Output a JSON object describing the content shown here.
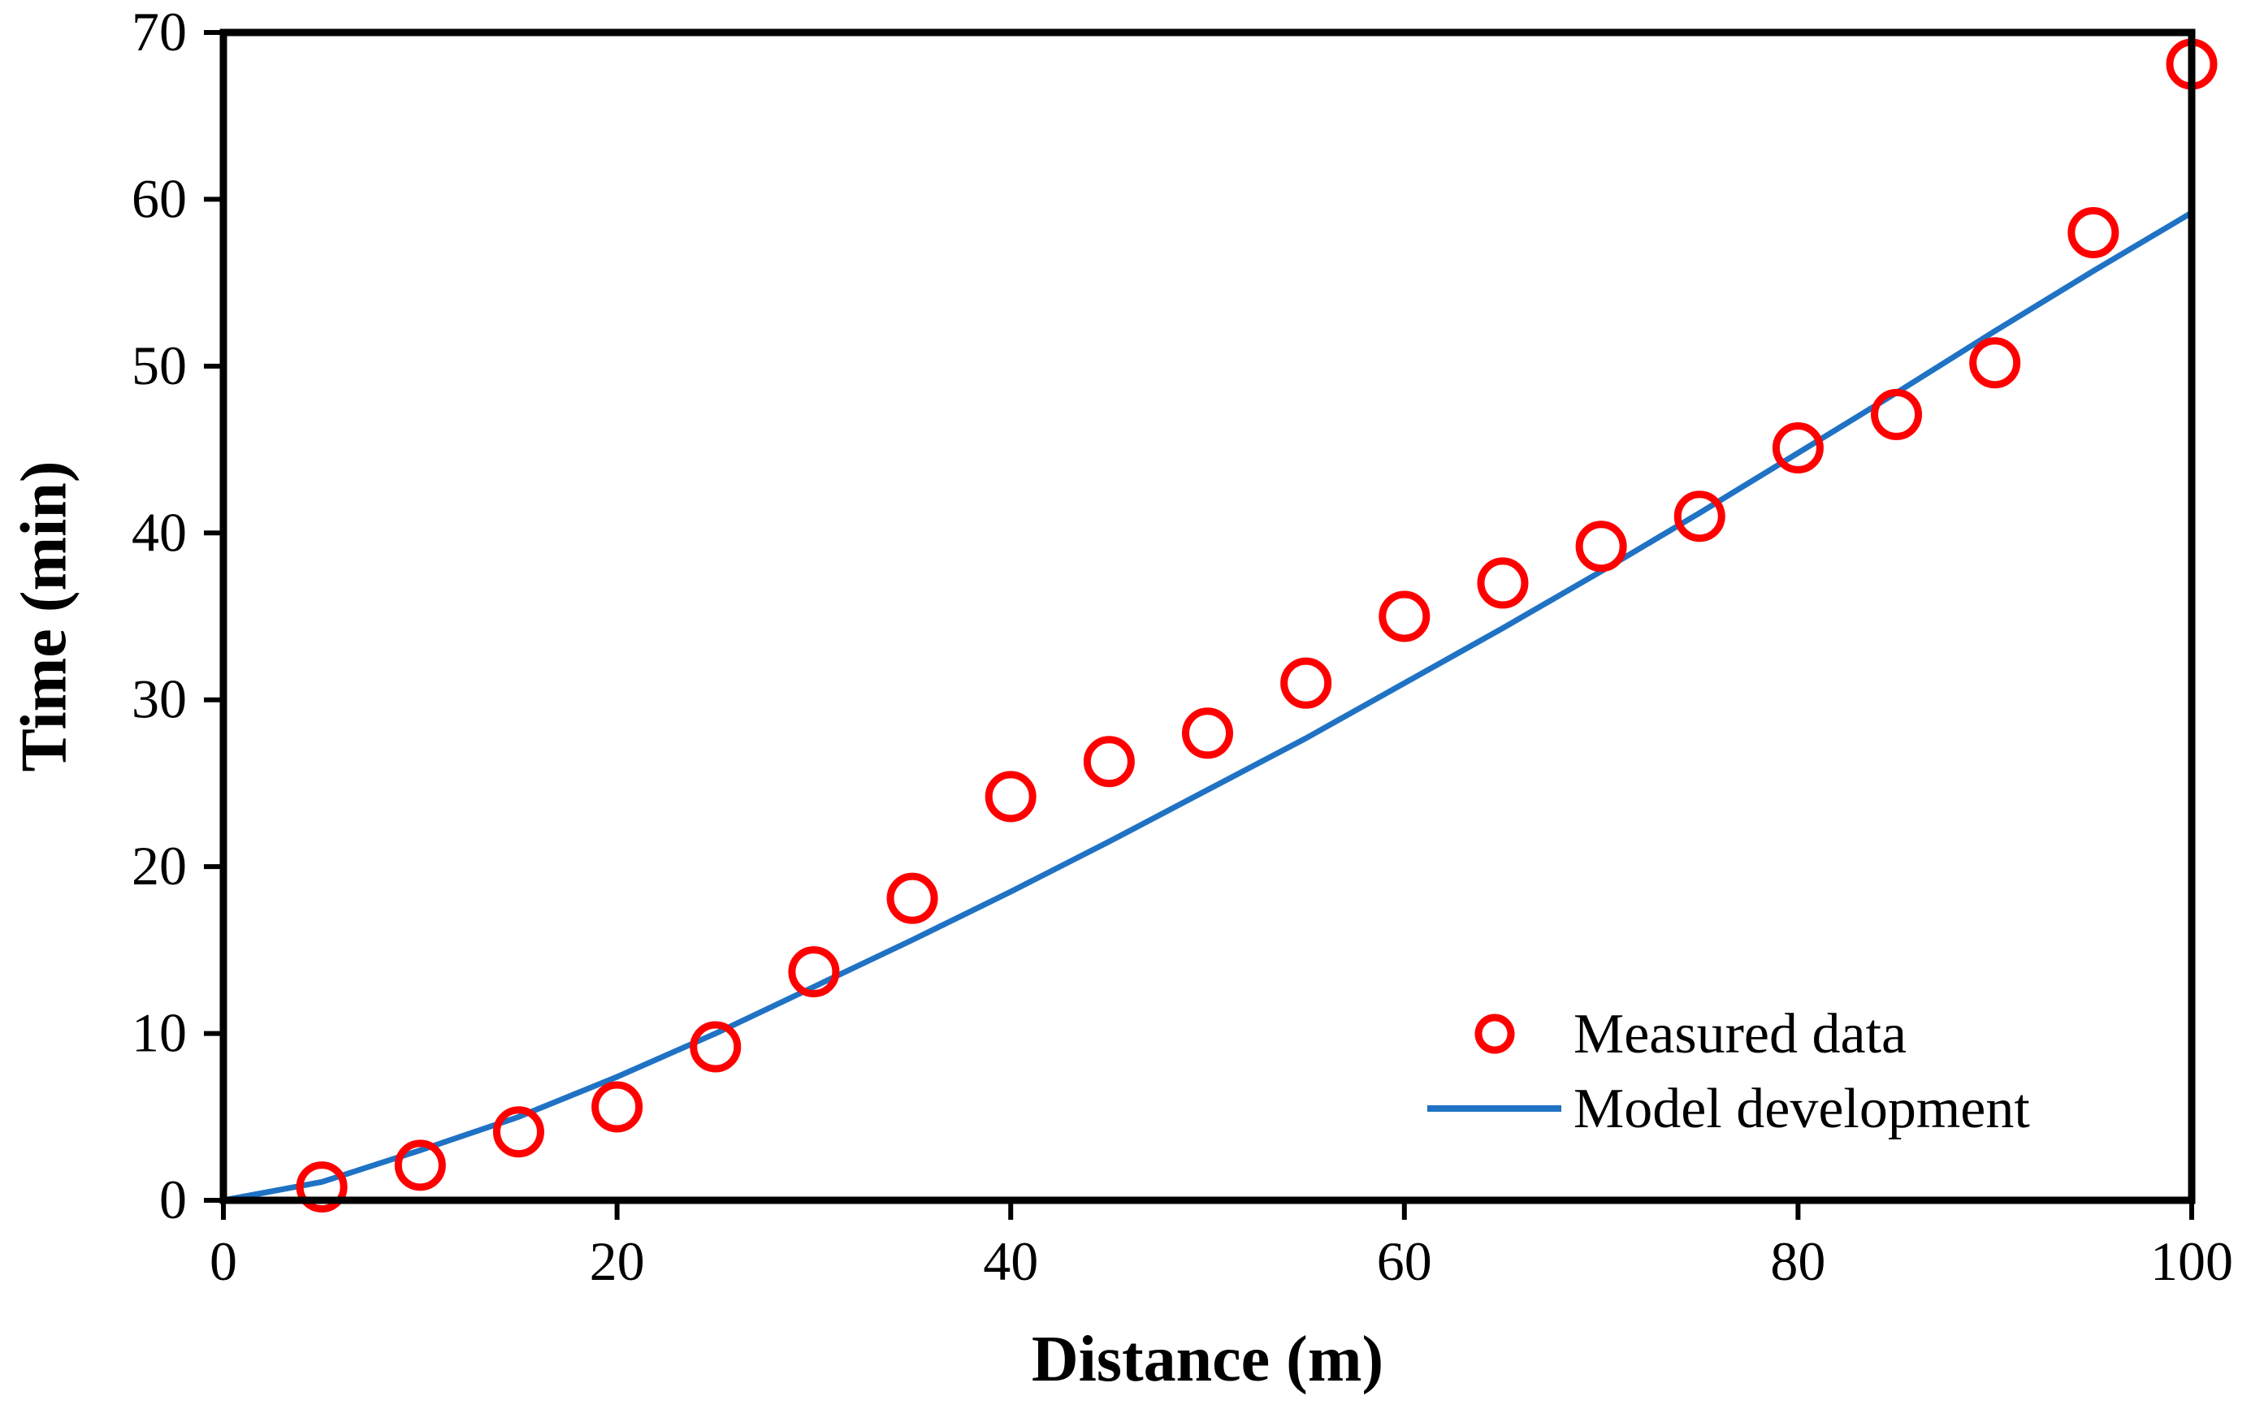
{
  "chart_data": {
    "type": "scatter",
    "title": "",
    "xlabel": "Distance (m)",
    "ylabel": "Time (min)",
    "xlim": [
      0,
      100
    ],
    "ylim": [
      0,
      70
    ],
    "xticks": [
      0,
      20,
      40,
      60,
      80,
      100
    ],
    "yticks": [
      0,
      10,
      20,
      30,
      40,
      50,
      60,
      70
    ],
    "xtick_labels": [
      "0",
      "20",
      "40",
      "60",
      "80",
      "100"
    ],
    "ytick_labels": [
      "0",
      "10",
      "20",
      "30",
      "40",
      "50",
      "60",
      "70"
    ],
    "grid": false,
    "legend_position": "bottom-right",
    "series": [
      {
        "name": "Measured data",
        "kind": "scatter",
        "marker": "open-circle",
        "color": "#ff0000",
        "x": [
          5,
          10,
          15,
          20,
          25,
          30,
          35,
          40,
          45,
          50,
          55,
          60,
          65,
          70,
          75,
          80,
          85,
          90,
          95,
          100
        ],
        "y": [
          0.8,
          2.1,
          4.1,
          5.6,
          9.2,
          13.7,
          18.1,
          24.2,
          26.3,
          28,
          31,
          35,
          37,
          39.2,
          41,
          45.1,
          47.1,
          50.2,
          58,
          68.1
        ]
      },
      {
        "name": "Model development",
        "kind": "line",
        "color": "#1f72c4",
        "x": [
          0,
          5,
          10,
          15,
          20,
          25,
          30,
          35,
          40,
          45,
          50,
          55,
          60,
          65,
          70,
          75,
          80,
          85,
          90,
          95,
          100
        ],
        "y": [
          0,
          1.1,
          3,
          5,
          7.4,
          10,
          12.8,
          15.6,
          18.5,
          21.5,
          24.6,
          27.7,
          31,
          34.3,
          37.7,
          41.2,
          44.8,
          48.4,
          52.1,
          55.7,
          59.2
        ]
      }
    ]
  }
}
